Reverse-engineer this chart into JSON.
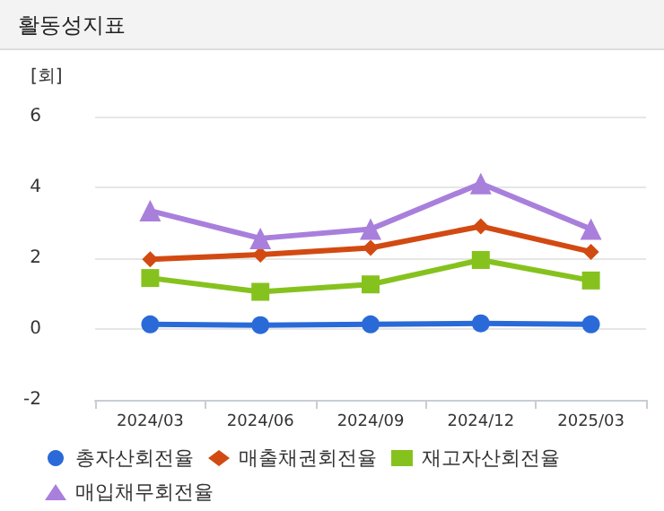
{
  "chart_data": {
    "type": "line",
    "title": "활동성지표",
    "ylabel": "[회]",
    "categories": [
      "2024/03",
      "2024/06",
      "2024/09",
      "2024/12",
      "2025/03"
    ],
    "series": [
      {
        "name": "총자산회전율",
        "color": "#2a6ad8",
        "marker": "circle",
        "values": [
          0.13,
          0.11,
          0.13,
          0.16,
          0.13
        ]
      },
      {
        "name": "매출채권회전율",
        "color": "#d24a12",
        "marker": "diamond",
        "values": [
          1.97,
          2.1,
          2.29,
          2.9,
          2.18
        ]
      },
      {
        "name": "재고자산회전율",
        "color": "#86c21e",
        "marker": "square",
        "values": [
          1.44,
          1.05,
          1.26,
          1.95,
          1.37
        ]
      },
      {
        "name": "매입채무회전율",
        "color": "#a97fdc",
        "marker": "triangle",
        "values": [
          3.34,
          2.56,
          2.82,
          4.11,
          2.82
        ]
      }
    ],
    "ylim": [
      -2,
      6
    ],
    "yticks": [
      -2,
      0,
      2,
      4,
      6
    ],
    "grid": "y",
    "legend": "bottom"
  }
}
